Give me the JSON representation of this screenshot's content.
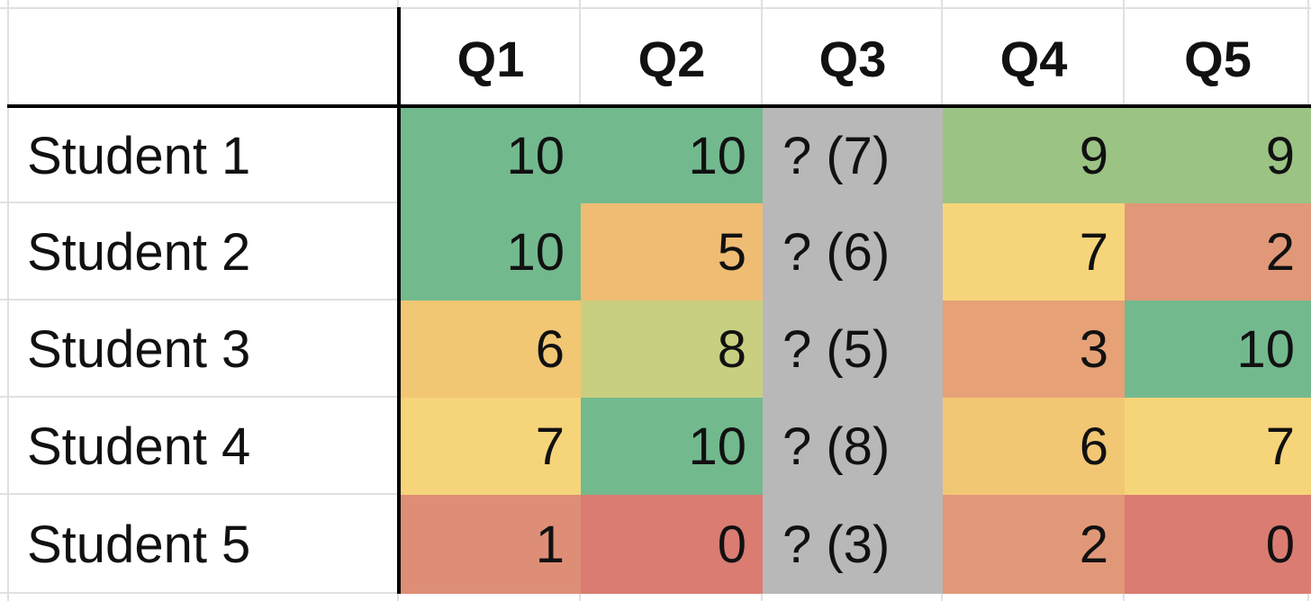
{
  "columns": [
    "Q1",
    "Q2",
    "Q3",
    "Q4",
    "Q5"
  ],
  "rows": [
    {
      "label": "Student 1",
      "cells": [
        {
          "text": "10",
          "color": "#73b98e"
        },
        {
          "text": "10",
          "color": "#73b98e"
        },
        {
          "text": "? (7)",
          "color": "#b8b8b8"
        },
        {
          "text": "9",
          "color": "#9bc384"
        },
        {
          "text": "9",
          "color": "#9bc384"
        }
      ]
    },
    {
      "label": "Student 2",
      "cells": [
        {
          "text": "10",
          "color": "#73b98e"
        },
        {
          "text": "5",
          "color": "#efbc74"
        },
        {
          "text": "? (6)",
          "color": "#b8b8b8"
        },
        {
          "text": "7",
          "color": "#f6d47a"
        },
        {
          "text": "2",
          "color": "#e19878"
        }
      ]
    },
    {
      "label": "Student 3",
      "cells": [
        {
          "text": "6",
          "color": "#f1c774"
        },
        {
          "text": "8",
          "color": "#c9cf80"
        },
        {
          "text": "? (5)",
          "color": "#b8b8b8"
        },
        {
          "text": "3",
          "color": "#e6a176"
        },
        {
          "text": "10",
          "color": "#73b98e"
        }
      ]
    },
    {
      "label": "Student 4",
      "cells": [
        {
          "text": "7",
          "color": "#f6d47a"
        },
        {
          "text": "10",
          "color": "#73b98e"
        },
        {
          "text": "? (8)",
          "color": "#b8b8b8"
        },
        {
          "text": "6",
          "color": "#f1c774"
        },
        {
          "text": "7",
          "color": "#f6d47a"
        }
      ]
    },
    {
      "label": "Student 5",
      "cells": [
        {
          "text": "1",
          "color": "#de8e76"
        },
        {
          "text": "0",
          "color": "#da7c72"
        },
        {
          "text": "? (3)",
          "color": "#b8b8b8"
        },
        {
          "text": "2",
          "color": "#e19878"
        },
        {
          "text": "0",
          "color": "#da7c72"
        }
      ]
    }
  ]
}
